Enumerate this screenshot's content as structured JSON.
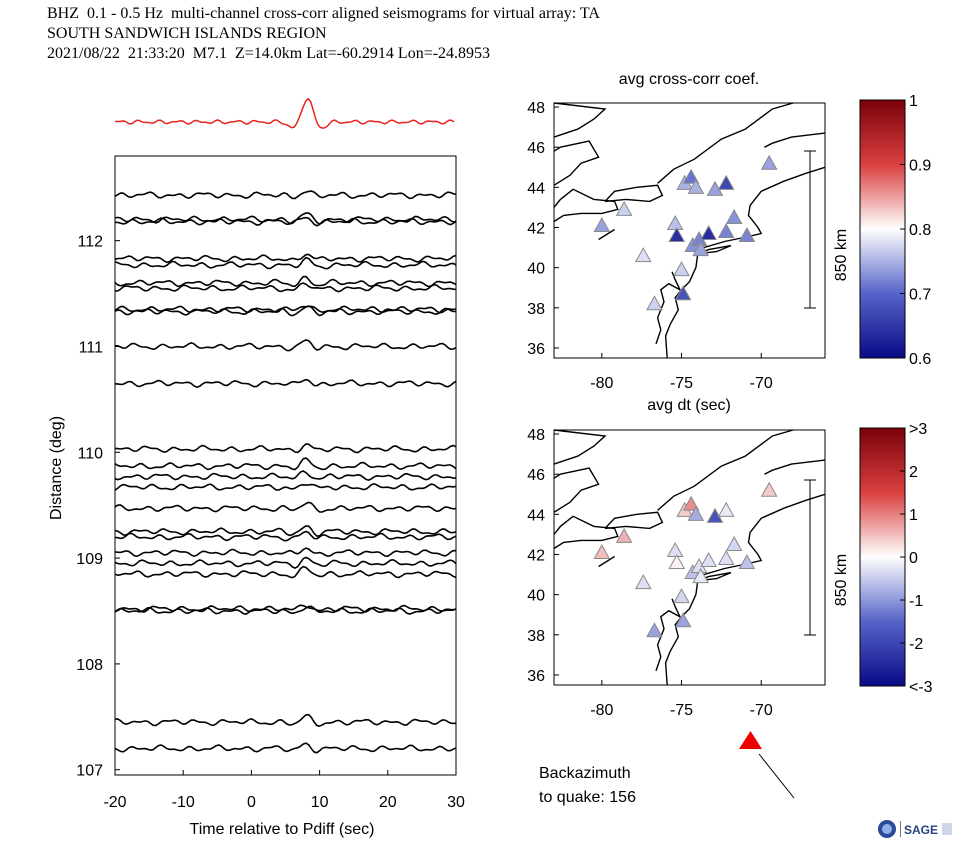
{
  "header": {
    "line1": "BHZ  0.1 - 0.5 Hz  multi-channel cross-corr aligned seismograms for virtual array: TA",
    "line2": "SOUTH SANDWICH ISLANDS REGION",
    "line3": "2021/08/22  21:33:20  M7.1  Z=14.0km Lat=-60.2914 Lon=-24.8953"
  },
  "colors": {
    "stack_trace": "#e8241c",
    "traces": "#000000",
    "arrow_marker": "#ee0000"
  },
  "seismogram_panel": {
    "xlabel": "Time relative to Pdiff (sec)",
    "ylabel": "Distance (deg)",
    "xlim": [
      -20,
      30
    ],
    "ylim": [
      106.95,
      112.8
    ],
    "xticks": [
      "-20",
      "-10",
      "0",
      "10",
      "20",
      "30"
    ],
    "yticks": [
      "107",
      "108",
      "109",
      "110",
      "111",
      "112"
    ],
    "trace_distances": [
      112.43,
      112.2,
      112.18,
      111.83,
      111.77,
      111.6,
      111.55,
      111.35,
      111.33,
      111.0,
      110.65,
      110.03,
      109.87,
      109.77,
      109.67,
      109.47,
      109.25,
      109.2,
      109.05,
      108.95,
      108.85,
      108.52,
      108.5,
      107.45,
      107.2
    ]
  },
  "map_panels": [
    {
      "title": "avg cross-corr coef.",
      "xticks": [
        "-80",
        "-75",
        "-70"
      ],
      "yticks": [
        "36",
        "38",
        "40",
        "42",
        "44",
        "46",
        "48"
      ],
      "xlim": [
        -83,
        -66
      ],
      "ylim": [
        35.5,
        48.2
      ],
      "scale_label": "850 km",
      "colorbar_ticks": [
        "1",
        "0.9",
        "0.8",
        "0.7",
        "0.6"
      ],
      "stations": [
        {
          "lon": -80.0,
          "lat": 42.1,
          "value": 0.74
        },
        {
          "lon": -78.6,
          "lat": 42.9,
          "value": 0.77
        },
        {
          "lon": -77.4,
          "lat": 40.6,
          "value": 0.78
        },
        {
          "lon": -76.7,
          "lat": 38.2,
          "value": 0.77
        },
        {
          "lon": -75.4,
          "lat": 42.2,
          "value": 0.76
        },
        {
          "lon": -75.3,
          "lat": 41.6,
          "value": 0.64
        },
        {
          "lon": -75.0,
          "lat": 39.9,
          "value": 0.77
        },
        {
          "lon": -74.9,
          "lat": 38.7,
          "value": 0.68
        },
        {
          "lon": -74.8,
          "lat": 44.2,
          "value": 0.75
        },
        {
          "lon": -74.4,
          "lat": 44.5,
          "value": 0.71
        },
        {
          "lon": -74.3,
          "lat": 41.1,
          "value": 0.73
        },
        {
          "lon": -74.1,
          "lat": 44.0,
          "value": 0.75
        },
        {
          "lon": -73.9,
          "lat": 41.4,
          "value": 0.72
        },
        {
          "lon": -73.8,
          "lat": 40.9,
          "value": 0.74
        },
        {
          "lon": -73.3,
          "lat": 41.7,
          "value": 0.64
        },
        {
          "lon": -72.9,
          "lat": 43.9,
          "value": 0.74
        },
        {
          "lon": -72.2,
          "lat": 41.8,
          "value": 0.72
        },
        {
          "lon": -72.2,
          "lat": 44.2,
          "value": 0.67
        },
        {
          "lon": -71.7,
          "lat": 42.5,
          "value": 0.73
        },
        {
          "lon": -70.9,
          "lat": 41.6,
          "value": 0.72
        },
        {
          "lon": -69.5,
          "lat": 45.2,
          "value": 0.74
        }
      ]
    },
    {
      "title": "avg dt (sec)",
      "xticks": [
        "-80",
        "-75",
        "-70"
      ],
      "yticks": [
        "36",
        "38",
        "40",
        "42",
        "44",
        "46",
        "48"
      ],
      "xlim": [
        -83,
        -66
      ],
      "ylim": [
        35.5,
        48.2
      ],
      "scale_label": "850 km",
      "colorbar_ticks": [
        ">3",
        "2",
        "1",
        "0",
        "-1",
        "-2",
        "<-3"
      ],
      "stations": [
        {
          "lon": -80.0,
          "lat": 42.1,
          "value": 0.5
        },
        {
          "lon": -78.6,
          "lat": 42.9,
          "value": 0.6
        },
        {
          "lon": -77.4,
          "lat": 40.6,
          "value": -0.3
        },
        {
          "lon": -76.7,
          "lat": 38.2,
          "value": -0.9
        },
        {
          "lon": -75.4,
          "lat": 42.2,
          "value": -0.3
        },
        {
          "lon": -75.3,
          "lat": 41.6,
          "value": 0.1
        },
        {
          "lon": -75.0,
          "lat": 39.9,
          "value": -0.4
        },
        {
          "lon": -74.9,
          "lat": 38.7,
          "value": -0.9
        },
        {
          "lon": -74.8,
          "lat": 44.2,
          "value": 0.4
        },
        {
          "lon": -74.4,
          "lat": 44.5,
          "value": 0.9
        },
        {
          "lon": -74.3,
          "lat": 41.1,
          "value": -0.6
        },
        {
          "lon": -74.1,
          "lat": 44.0,
          "value": -0.8
        },
        {
          "lon": -73.9,
          "lat": 41.4,
          "value": -0.3
        },
        {
          "lon": -73.8,
          "lat": 40.9,
          "value": -0.2
        },
        {
          "lon": -73.3,
          "lat": 41.7,
          "value": -0.3
        },
        {
          "lon": -72.9,
          "lat": 43.9,
          "value": -1.8
        },
        {
          "lon": -72.2,
          "lat": 41.8,
          "value": -0.3
        },
        {
          "lon": -72.2,
          "lat": 44.2,
          "value": -0.2
        },
        {
          "lon": -71.7,
          "lat": 42.5,
          "value": -0.4
        },
        {
          "lon": -70.9,
          "lat": 41.6,
          "value": -0.6
        },
        {
          "lon": -69.5,
          "lat": 45.2,
          "value": 0.4
        }
      ]
    }
  ],
  "backazimuth": {
    "line1": "Backazimuth",
    "line2": "to quake:  156",
    "value_deg": 156
  },
  "logo": {
    "text": "SAGE"
  }
}
